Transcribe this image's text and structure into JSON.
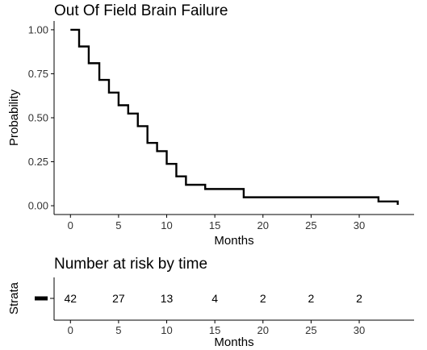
{
  "chart_data": [
    {
      "type": "line",
      "subtype": "step",
      "title": "Out Of Field Brain Failure",
      "xlabel": "Months",
      "ylabel": "Probability",
      "xlim": [
        -1.7,
        35.7
      ],
      "ylim": [
        -0.05,
        1.05
      ],
      "xticks": [
        "0",
        "5",
        "10",
        "15",
        "20",
        "25",
        "30"
      ],
      "yticks": [
        "0.00",
        "0.25",
        "0.50",
        "0.75",
        "1.00"
      ],
      "grid": false,
      "legend": "none",
      "color": "#000000",
      "series": [
        {
          "x": [
            0,
            0.9,
            1.9,
            3.0,
            4.0,
            5.0,
            6.0,
            7.0,
            8.0,
            9.0,
            10.0,
            11.0,
            12.0,
            14.0,
            18.0,
            32.0,
            34.0
          ],
          "y": [
            1.0,
            0.905,
            0.81,
            0.715,
            0.643,
            0.571,
            0.524,
            0.452,
            0.357,
            0.31,
            0.238,
            0.167,
            0.119,
            0.095,
            0.048,
            0.024,
            0.005
          ]
        }
      ]
    },
    {
      "type": "table",
      "title": "Number at risk by time",
      "xlabel": "Months",
      "ylabel": "Strata",
      "xticks": [
        "0",
        "5",
        "10",
        "15",
        "20",
        "25",
        "30"
      ],
      "values": [
        "42",
        "27",
        "13",
        "4",
        "2",
        "2",
        "2"
      ]
    }
  ]
}
